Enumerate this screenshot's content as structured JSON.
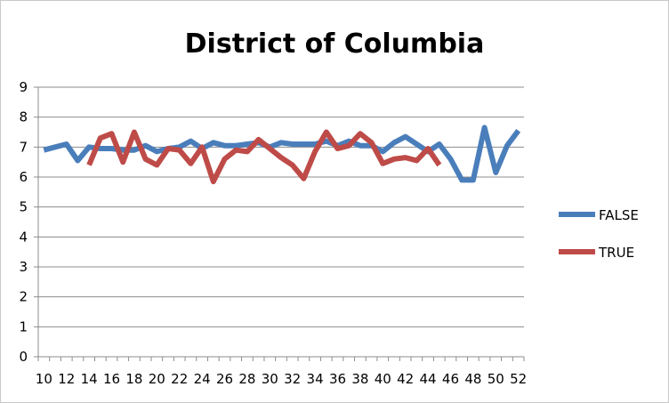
{
  "chart_data": {
    "type": "line",
    "title": "District of Columbia",
    "xlabel": "",
    "ylabel": "",
    "x_ticks": [
      10,
      12,
      14,
      16,
      18,
      20,
      22,
      24,
      26,
      28,
      30,
      32,
      34,
      36,
      38,
      40,
      42,
      44,
      46,
      48,
      50,
      52
    ],
    "ylim": [
      0,
      9
    ],
    "y_ticks": [
      0,
      1,
      2,
      3,
      4,
      5,
      6,
      7,
      8,
      9
    ],
    "grid": "horizontal",
    "legend_position": "right",
    "series": [
      {
        "name": "FALSE",
        "color": "#4a7ebb",
        "x": [
          10,
          11,
          12,
          13,
          14,
          15,
          16,
          17,
          18,
          19,
          20,
          21,
          22,
          23,
          24,
          25,
          26,
          27,
          28,
          29,
          30,
          31,
          32,
          33,
          34,
          35,
          36,
          37,
          38,
          39,
          40,
          41,
          42,
          43,
          44,
          45,
          46,
          47,
          48,
          49,
          50,
          51,
          52
        ],
        "values": [
          6.9,
          7.0,
          7.1,
          6.55,
          7.0,
          6.95,
          6.95,
          6.9,
          6.9,
          7.05,
          6.85,
          6.95,
          7.0,
          7.2,
          6.95,
          7.15,
          7.05,
          7.05,
          7.1,
          7.15,
          7.0,
          7.15,
          7.1,
          7.1,
          7.1,
          7.2,
          7.05,
          7.2,
          7.05,
          7.05,
          6.85,
          7.15,
          7.35,
          7.1,
          6.85,
          7.1,
          6.6,
          5.9,
          5.9,
          7.65,
          6.15,
          7.05,
          7.55
        ]
      },
      {
        "name": "TRUE",
        "color": "#be4b48",
        "x": [
          14,
          15,
          16,
          17,
          18,
          19,
          20,
          21,
          22,
          23,
          24,
          25,
          26,
          27,
          28,
          29,
          30,
          31,
          32,
          33,
          34,
          35,
          36,
          37,
          38,
          39,
          40,
          41,
          42,
          43,
          44,
          45
        ],
        "values": [
          6.4,
          7.3,
          7.45,
          6.5,
          7.5,
          6.6,
          6.4,
          6.95,
          6.9,
          6.45,
          7.0,
          5.85,
          6.6,
          6.9,
          6.85,
          7.25,
          6.95,
          6.65,
          6.4,
          5.95,
          6.85,
          7.5,
          6.95,
          7.05,
          7.45,
          7.15,
          6.45,
          6.6,
          6.65,
          6.55,
          6.95,
          6.4
        ]
      }
    ]
  }
}
